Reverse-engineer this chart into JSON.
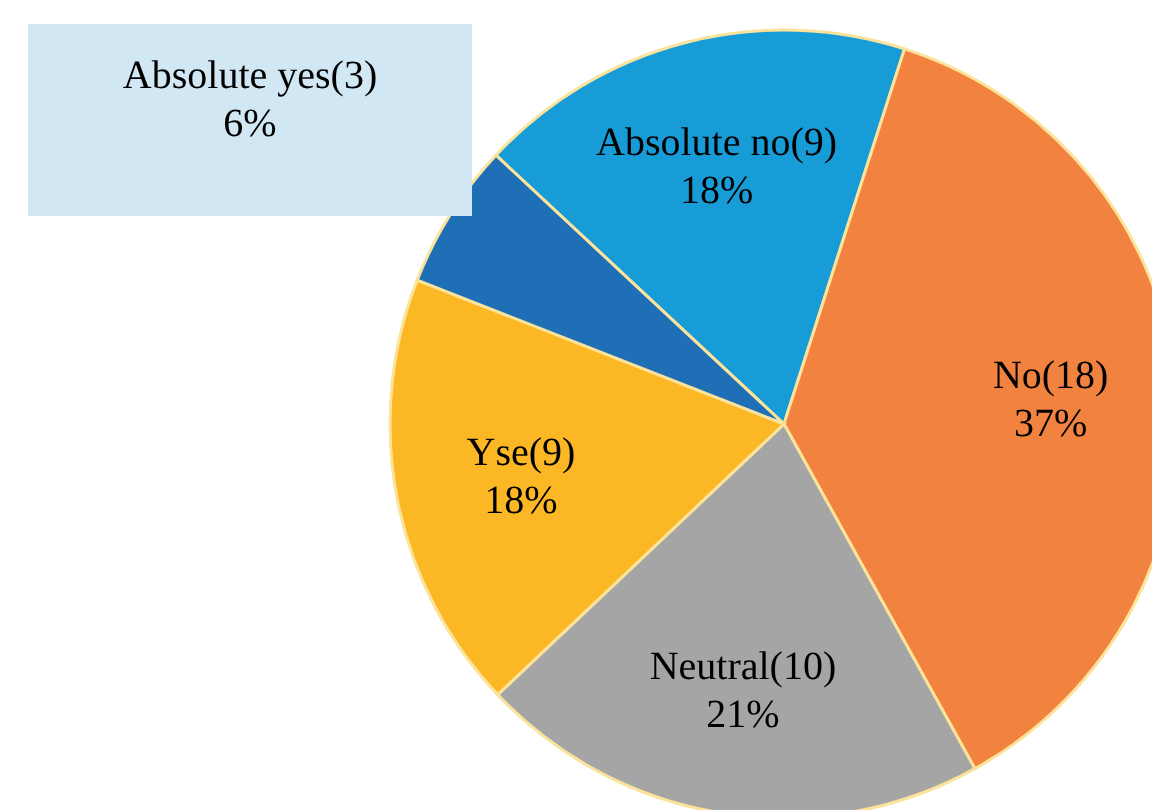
{
  "chart_data": {
    "type": "pie",
    "categories": [
      "Absolute no(9)",
      "No(18)",
      "Neutral(10)",
      "Yse(9)",
      "Absolute yes(3)"
    ],
    "values": [
      18,
      37,
      21,
      18,
      6
    ],
    "value_labels": [
      "18%",
      "37%",
      "21%",
      "18%",
      "6%"
    ],
    "colors": [
      "#179cd8",
      "#f2823f",
      "#a5a5a5",
      "#fbb824",
      "#1f6fb6"
    ]
  }
}
